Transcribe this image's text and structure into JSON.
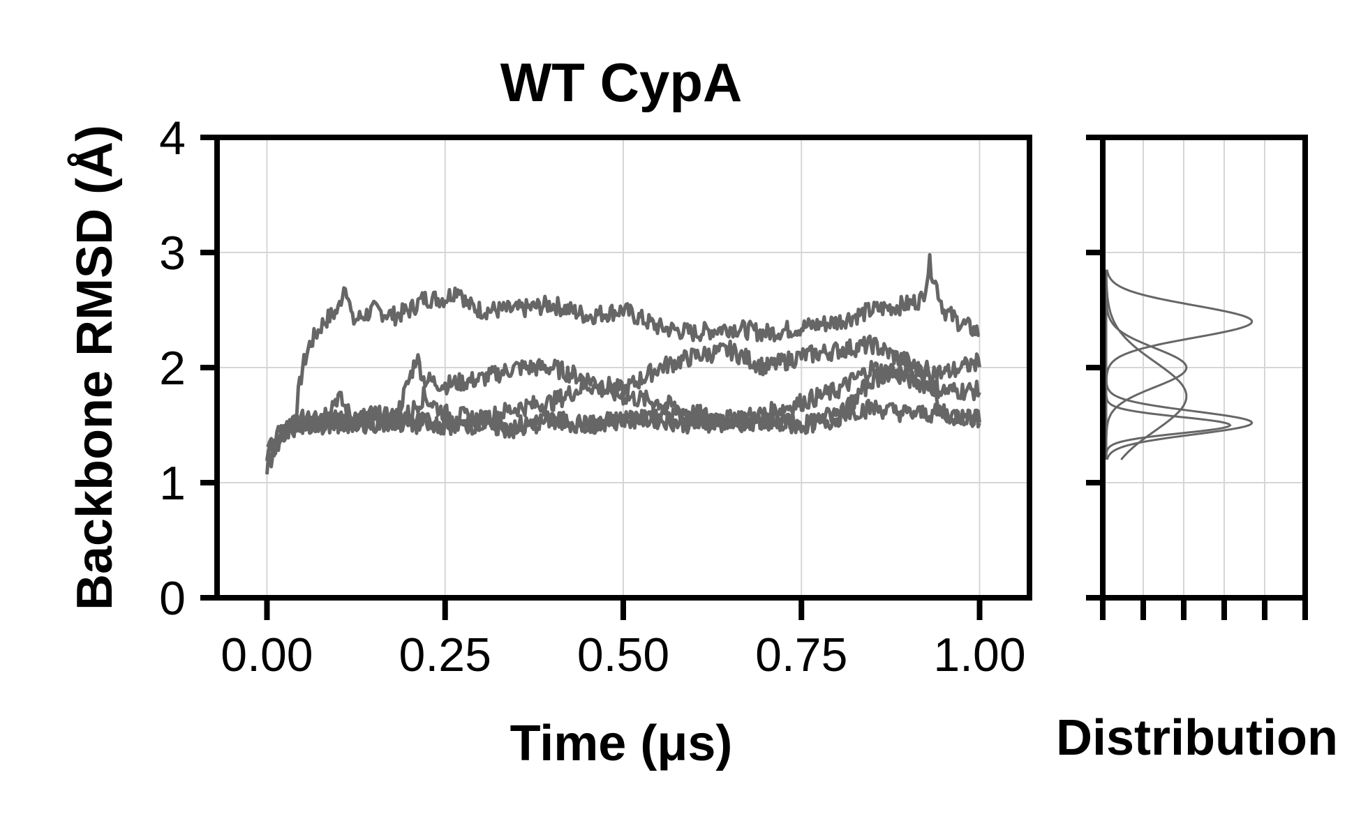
{
  "chart_data": [
    {
      "type": "line",
      "title": "WT CypA",
      "xlabel": "Time (μs)",
      "ylabel": "Backbone RMSD (Å)",
      "xlim": [
        -0.07,
        1.07
      ],
      "ylim": [
        0,
        4
      ],
      "xticks": [
        "0.00",
        "0.25",
        "0.50",
        "0.75",
        "1.00"
      ],
      "yticks": [
        "0",
        "1",
        "2",
        "3",
        "4"
      ],
      "grid": true,
      "line_color": "#666666",
      "series": [
        {
          "x": [
            0,
            0.02,
            0.04,
            0.05,
            0.06,
            0.08,
            0.1,
            0.11,
            0.12,
            0.15,
            0.18,
            0.2,
            0.22,
            0.25,
            0.27,
            0.28,
            0.3,
            0.35,
            0.4,
            0.45,
            0.5,
            0.55,
            0.6,
            0.65,
            0.7,
            0.75,
            0.8,
            0.85,
            0.9,
            0.92,
            0.93,
            0.95,
            0.97,
            1.0
          ],
          "y": [
            1.2,
            1.4,
            1.6,
            2.0,
            2.2,
            2.4,
            2.5,
            2.75,
            2.4,
            2.5,
            2.45,
            2.5,
            2.6,
            2.6,
            2.7,
            2.55,
            2.5,
            2.5,
            2.55,
            2.45,
            2.5,
            2.35,
            2.3,
            2.35,
            2.3,
            2.35,
            2.4,
            2.5,
            2.55,
            2.6,
            2.9,
            2.5,
            2.4,
            2.3
          ]
        },
        {
          "x": [
            0,
            0.02,
            0.05,
            0.08,
            0.1,
            0.12,
            0.15,
            0.18,
            0.2,
            0.21,
            0.22,
            0.25,
            0.3,
            0.35,
            0.4,
            0.45,
            0.5,
            0.55,
            0.6,
            0.65,
            0.7,
            0.75,
            0.8,
            0.85,
            0.88,
            0.9,
            0.93,
            0.95,
            0.98,
            1.0
          ],
          "y": [
            1.25,
            1.45,
            1.55,
            1.6,
            1.75,
            1.55,
            1.6,
            1.55,
            1.9,
            2.1,
            1.9,
            1.85,
            1.9,
            2.0,
            2.0,
            1.9,
            1.8,
            2.0,
            2.1,
            2.15,
            2.0,
            2.1,
            2.15,
            2.2,
            2.1,
            2.05,
            1.9,
            1.6,
            1.55,
            1.55
          ]
        },
        {
          "x": [
            0,
            0.03,
            0.06,
            0.1,
            0.15,
            0.2,
            0.22,
            0.25,
            0.3,
            0.35,
            0.4,
            0.45,
            0.5,
            0.55,
            0.6,
            0.65,
            0.7,
            0.75,
            0.8,
            0.85,
            0.9,
            0.95,
            1.0
          ],
          "y": [
            1.3,
            1.5,
            1.55,
            1.5,
            1.55,
            1.6,
            1.75,
            1.6,
            1.55,
            1.65,
            1.7,
            1.85,
            1.75,
            1.7,
            1.6,
            1.55,
            1.6,
            1.7,
            1.8,
            2.0,
            1.9,
            1.8,
            1.8
          ]
        },
        {
          "x": [
            0,
            0.03,
            0.06,
            0.1,
            0.15,
            0.2,
            0.25,
            0.3,
            0.35,
            0.4,
            0.45,
            0.5,
            0.55,
            0.6,
            0.65,
            0.7,
            0.75,
            0.8,
            0.85,
            0.9,
            0.95,
            1.0
          ],
          "y": [
            1.2,
            1.45,
            1.5,
            1.55,
            1.5,
            1.55,
            1.5,
            1.55,
            1.5,
            1.55,
            1.5,
            1.55,
            1.55,
            1.5,
            1.55,
            1.5,
            1.5,
            1.55,
            1.9,
            2.0,
            1.95,
            2.05
          ]
        },
        {
          "x": [
            0,
            0.03,
            0.06,
            0.1,
            0.15,
            0.2,
            0.25,
            0.3,
            0.35,
            0.4,
            0.45,
            0.5,
            0.55,
            0.6,
            0.65,
            0.7,
            0.75,
            0.8,
            0.85,
            0.9,
            0.95,
            1.0
          ],
          "y": [
            1.15,
            1.45,
            1.5,
            1.5,
            1.55,
            1.5,
            1.5,
            1.5,
            1.45,
            1.55,
            1.5,
            1.55,
            1.6,
            1.55,
            1.5,
            1.55,
            1.5,
            1.6,
            1.65,
            1.6,
            1.6,
            1.55
          ]
        }
      ]
    },
    {
      "type": "line",
      "orientation": "horizontal",
      "title": "",
      "xlabel": "Distribution",
      "ylabel": "",
      "ylim": [
        0,
        4
      ],
      "x_tick_count": 6,
      "grid": true,
      "line_color": "#666666",
      "series": [
        {
          "mode": 2.4,
          "width": 0.14,
          "height": 1.0
        },
        {
          "mode": 1.52,
          "width": 0.1,
          "height": 1.0
        },
        {
          "mode": 1.5,
          "width": 0.07,
          "height": 0.85
        },
        {
          "mode": 2.0,
          "width": 0.17,
          "height": 0.55
        },
        {
          "mode": 1.75,
          "width": 0.3,
          "height": 0.55
        }
      ]
    }
  ]
}
